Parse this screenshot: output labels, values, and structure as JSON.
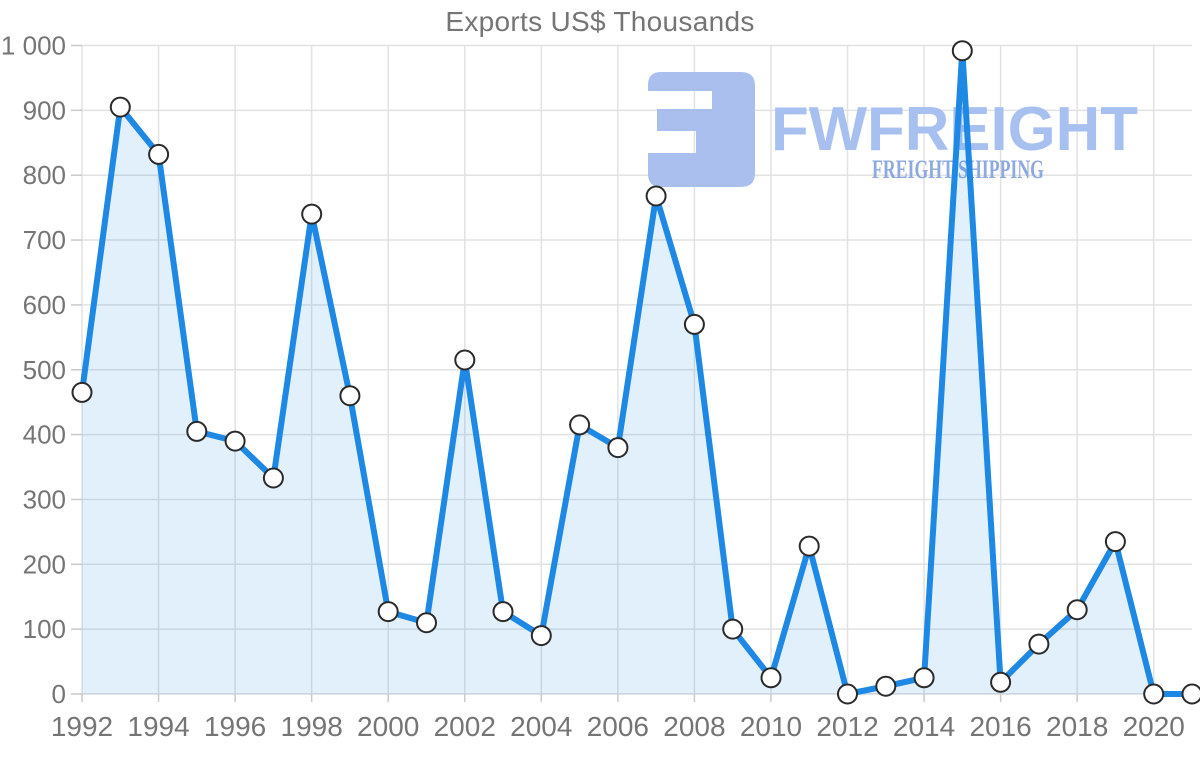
{
  "title": "Exports US$ Thousands",
  "watermark": {
    "brand": "FWFREIGHT",
    "tagline": "FREIGHT SHIPPING"
  },
  "colors": {
    "line": "#1e88e5",
    "area": "rgba(30,136,229,0.13)",
    "grid": "#e2e2e2",
    "axis_baseline": "#d9d9d9",
    "tick_mark": "#c9c9c9",
    "label_text": "#757575",
    "marker_fill": "#ffffff",
    "marker_stroke": "#2a2a2a",
    "watermark_mark": "#aabfee",
    "watermark_brand": "#a8c0f0",
    "watermark_tagline": "#8ea8e0"
  },
  "chart_data": {
    "type": "area",
    "title": "Exports US$ Thousands",
    "x": [
      1992,
      1993,
      1994,
      1995,
      1996,
      1997,
      1998,
      1999,
      2000,
      2001,
      2002,
      2003,
      2004,
      2005,
      2006,
      2007,
      2008,
      2009,
      2010,
      2011,
      2012,
      2013,
      2014,
      2015,
      2016,
      2017,
      2018,
      2019,
      2020,
      2021
    ],
    "values": [
      465,
      905,
      832,
      405,
      390,
      333,
      740,
      460,
      127,
      110,
      515,
      127,
      90,
      415,
      380,
      768,
      570,
      100,
      25,
      228,
      0,
      12,
      25,
      992,
      18,
      77,
      130,
      235,
      0,
      0
    ],
    "xlabel": "",
    "ylabel": "",
    "ylim": [
      0,
      1000
    ],
    "y_ticks": [
      0,
      100,
      200,
      300,
      400,
      500,
      600,
      700,
      800,
      900,
      1000
    ],
    "y_tick_labels": [
      "0",
      "100",
      "200",
      "300",
      "400",
      "500",
      "600",
      "700",
      "800",
      "900",
      "1 000"
    ],
    "x_tick_years": [
      1992,
      1994,
      1996,
      1998,
      2000,
      2002,
      2004,
      2006,
      2008,
      2010,
      2012,
      2014,
      2016,
      2018,
      2020
    ],
    "grid": true,
    "legend": false,
    "markers": true
  }
}
